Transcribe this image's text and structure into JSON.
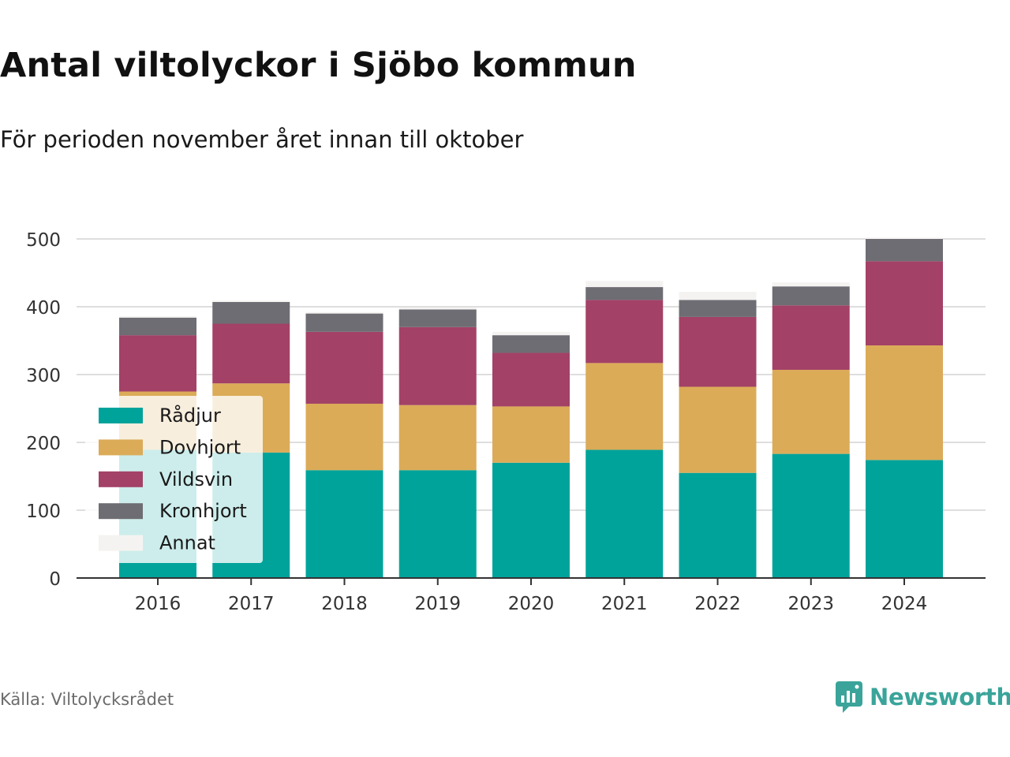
{
  "title": "Antal viltolyckor i Sjöbo kommun",
  "subtitle": "För perioden november året innan till oktober",
  "source": "Källa: Viltolycksrådet",
  "brand": "Newsworthy",
  "chart_data": {
    "type": "bar",
    "stacked": true,
    "categories": [
      "2016",
      "2017",
      "2018",
      "2019",
      "2020",
      "2021",
      "2022",
      "2023",
      "2024"
    ],
    "series": [
      {
        "name": "Rådjur",
        "color": "#00a39a",
        "values": [
          189,
          185,
          159,
          159,
          170,
          189,
          155,
          183,
          174
        ]
      },
      {
        "name": "Dovhjort",
        "color": "#dbab58",
        "values": [
          86,
          102,
          98,
          96,
          83,
          128,
          127,
          124,
          169
        ]
      },
      {
        "name": "Vildsvin",
        "color": "#a34167",
        "values": [
          83,
          88,
          106,
          115,
          79,
          93,
          103,
          95,
          124
        ]
      },
      {
        "name": "Kronhjort",
        "color": "#6e6d73",
        "values": [
          26,
          32,
          27,
          26,
          26,
          19,
          25,
          28,
          33
        ]
      },
      {
        "name": "Annat",
        "color": "#f5f3f1",
        "values": [
          2,
          2,
          2,
          3,
          5,
          9,
          12,
          6,
          2
        ]
      }
    ],
    "yticks": [
      0,
      100,
      200,
      300,
      400,
      500
    ],
    "ylim": [
      0,
      500
    ],
    "grid": true,
    "legend_position": "left-inside"
  }
}
